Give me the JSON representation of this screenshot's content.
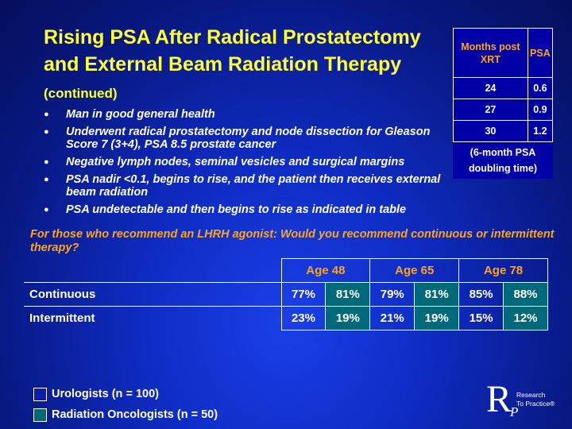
{
  "title": {
    "main": "Rising PSA After Radical Prostatectomy and External Beam Radiation Therapy",
    "suffix": "(continued)"
  },
  "bullets": [
    "Man in good general health",
    "Underwent radical prostatectomy and node dissection for Gleason Score 7 (3+4), PSA 8.5 prostate cancer",
    "Negative lymph nodes, seminal vesicles and surgical margins",
    "PSA nadir <0.1, begins to rise, and the patient then receives external beam radiation",
    "PSA undetectable and then begins to rise as indicated in table"
  ],
  "psa_table": {
    "headers": [
      "Months post XRT",
      "PSA"
    ],
    "rows": [
      [
        "24",
        "0.6"
      ],
      [
        "27",
        "0.9"
      ],
      [
        "30",
        "1.2"
      ]
    ],
    "note": "(6-month PSA doubling time)",
    "colors": {
      "header": "#ffa51a",
      "background": "#0000a6"
    }
  },
  "question": "For those who recommend an LHRH agonist: Would you recommend continuous or intermittent therapy?",
  "results": {
    "ages": [
      "Age 48",
      "Age 65",
      "Age 78"
    ],
    "rows": [
      {
        "label": "Continuous",
        "values": [
          "77%",
          "81%",
          "79%",
          "81%",
          "85%",
          "88%"
        ]
      },
      {
        "label": "Intermittent",
        "values": [
          "23%",
          "19%",
          "21%",
          "19%",
          "15%",
          "12%"
        ]
      }
    ]
  },
  "legend": [
    {
      "label": "Urologists  (n = 100)",
      "color": "#0a1ea8"
    },
    {
      "label": "Radiation Oncologists  (n = 50)",
      "color": "#00697a"
    }
  ],
  "logo": {
    "letters": "R",
    "sub": "P",
    "line1": "Research",
    "line2": "To Practice®"
  }
}
